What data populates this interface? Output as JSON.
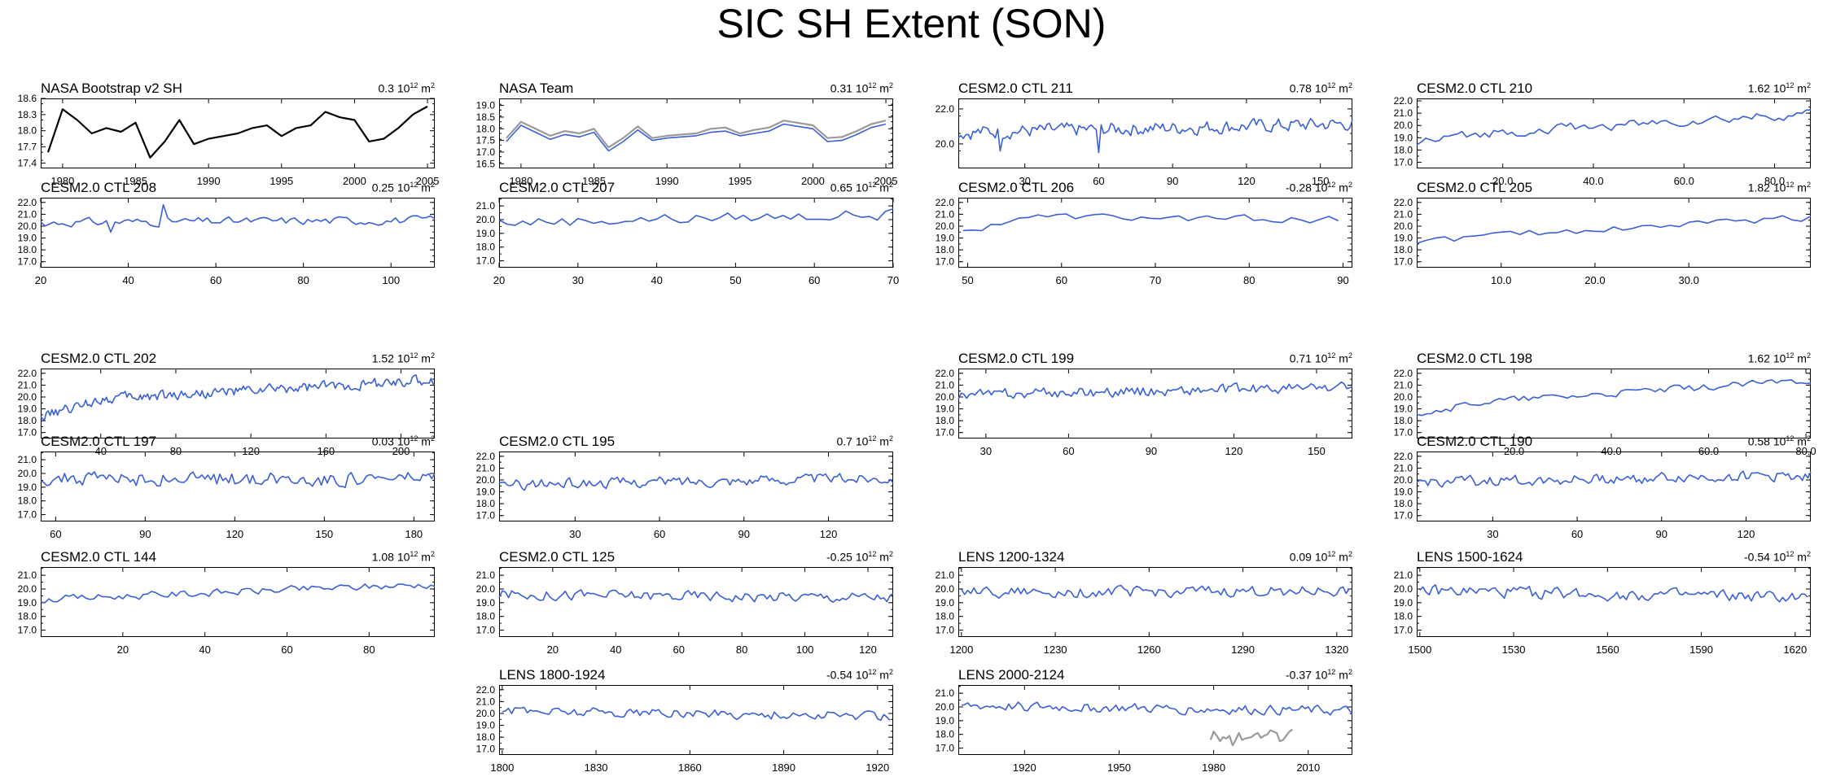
{
  "figure": {
    "title": "SIC SH Extent (SON)"
  },
  "colors": {
    "model": "#3a5fd6",
    "obs": "#000000",
    "obs_alt": "#9a9a9a"
  },
  "trend_unit": {
    "base": "10",
    "exp": "12",
    "unit": "m",
    "unit_exp": "2"
  },
  "chart_data": [
    {
      "id": "nasa-bootstrap",
      "type": "line",
      "name": "NASA Bootstrap v2 SH",
      "trend": "0.3",
      "xlim": [
        1978.5,
        2005.5
      ],
      "ylim": [
        17.3,
        18.6
      ],
      "yticks": [
        17.4,
        17.7,
        18.0,
        18.3,
        18.6
      ],
      "ytick_labels": [
        "17.4",
        "17.7",
        "18.0",
        "18.3",
        "18.6"
      ],
      "xticks": [
        1980,
        1985,
        1990,
        1995,
        2000,
        2005
      ],
      "xtick_labels": [
        "1980",
        "1985",
        "1990",
        "1995",
        "2000",
        "2005"
      ],
      "series": [
        {
          "style": "obs",
          "x0": 1979,
          "dx": 1,
          "values": [
            17.6,
            18.4,
            18.2,
            17.95,
            18.05,
            17.98,
            18.15,
            17.5,
            17.8,
            18.2,
            17.75,
            17.85,
            17.9,
            17.95,
            18.05,
            18.1,
            17.9,
            18.05,
            18.1,
            18.35,
            18.25,
            18.2,
            17.8,
            17.85,
            18.05,
            18.3,
            18.45
          ]
        }
      ]
    },
    {
      "id": "nasa-team",
      "type": "line",
      "name": "NASA Team",
      "trend": "0.31",
      "xlim": [
        1978.5,
        2005.5
      ],
      "ylim": [
        16.3,
        19.3
      ],
      "yticks": [
        16.5,
        17.0,
        17.5,
        18.0,
        18.5,
        19.0
      ],
      "ytick_labels": [
        "16.5",
        "17.0",
        "17.5",
        "18.0",
        "18.5",
        "19.0"
      ],
      "xticks": [
        1980,
        1985,
        1990,
        1995,
        2000,
        2005
      ],
      "xtick_labels": [
        "1980",
        "1985",
        "1990",
        "1995",
        "2000",
        "2005"
      ],
      "series": [
        {
          "style": "obs_alt",
          "x0": 1979,
          "dx": 1,
          "values": [
            17.6,
            18.3,
            18.0,
            17.7,
            17.9,
            17.8,
            18.0,
            17.2,
            17.6,
            18.1,
            17.6,
            17.7,
            17.75,
            17.8,
            18.0,
            18.05,
            17.8,
            17.95,
            18.05,
            18.35,
            18.25,
            18.15,
            17.6,
            17.65,
            17.9,
            18.2,
            18.35
          ]
        },
        {
          "style": "model",
          "x0": 1979,
          "dx": 1,
          "values": [
            17.45,
            18.15,
            17.85,
            17.55,
            17.75,
            17.65,
            17.85,
            17.05,
            17.45,
            17.95,
            17.5,
            17.6,
            17.65,
            17.7,
            17.85,
            17.9,
            17.7,
            17.8,
            17.9,
            18.2,
            18.1,
            18.0,
            17.45,
            17.5,
            17.75,
            18.05,
            18.2
          ]
        }
      ]
    },
    {
      "id": "ctl-211",
      "type": "line",
      "name": "CESM2.0 CTL 211",
      "trend": "0.78",
      "xlim": [
        3,
        163
      ],
      "ylim": [
        18.6,
        22.6
      ],
      "yticks": [
        20.0,
        22.0
      ],
      "ytick_labels": [
        "20.0",
        "22.0"
      ],
      "xticks": [
        30,
        60,
        90,
        120,
        150
      ],
      "xtick_labels": [
        "30",
        "60",
        "90",
        "120",
        "150"
      ],
      "series": [
        {
          "style": "model",
          "x0": 3,
          "dx": 1,
          "n": 161,
          "seed": 211,
          "mean": 20.9,
          "amp": 0.45,
          "trend": 0.5,
          "dip": [
            [
              20,
              19.6
            ],
            [
              60,
              19.5
            ]
          ]
        }
      ]
    },
    {
      "id": "ctl-210",
      "type": "line",
      "name": "CESM2.0 CTL 210",
      "trend": "1.62",
      "xlim": [
        1,
        88
      ],
      "ylim": [
        16.5,
        22.2
      ],
      "yticks": [
        17.0,
        18.0,
        19.0,
        20.0,
        21.0,
        22.0
      ],
      "ytick_labels": [
        "17.0",
        "18.0",
        "19.0",
        "20.0",
        "21.0",
        "22.0"
      ],
      "xticks": [
        20,
        40,
        60,
        80
      ],
      "xtick_labels": [
        "20.0",
        "40.0",
        "60.0",
        "80.0"
      ],
      "series": [
        {
          "style": "model",
          "x0": 1,
          "dx": 1,
          "n": 88,
          "seed": 210,
          "mean": 20.0,
          "amp": 0.45,
          "trend": 1.9,
          "start": 18.6
        }
      ]
    },
    {
      "id": "ctl-208",
      "type": "line",
      "name": "CESM2.0 CTL 208",
      "trend": "0.25",
      "xlim": [
        20,
        110
      ],
      "ylim": [
        16.5,
        22.4
      ],
      "yticks": [
        17.0,
        18.0,
        19.0,
        20.0,
        21.0,
        22.0
      ],
      "ytick_labels": [
        "17.0",
        "18.0",
        "19.0",
        "20.0",
        "21.0",
        "22.0"
      ],
      "xticks": [
        20,
        40,
        60,
        80,
        100
      ],
      "xtick_labels": [
        "20",
        "40",
        "60",
        "80",
        "100"
      ],
      "series": [
        {
          "style": "model",
          "x0": 20,
          "dx": 1,
          "n": 91,
          "seed": 208,
          "mean": 20.4,
          "amp": 0.4,
          "trend": 0.2,
          "dip": [
            [
              36,
              19.5
            ],
            [
              48,
              21.8
            ]
          ]
        }
      ]
    },
    {
      "id": "ctl-207",
      "type": "line",
      "name": "CESM2.0 CTL 207",
      "trend": "0.65",
      "xlim": [
        20,
        70
      ],
      "ylim": [
        16.5,
        21.6
      ],
      "yticks": [
        17.0,
        18.0,
        19.0,
        20.0,
        21.0
      ],
      "ytick_labels": [
        "17.0",
        "18.0",
        "19.0",
        "20.0",
        "21.0"
      ],
      "xticks": [
        20,
        30,
        40,
        50,
        60,
        70
      ],
      "xtick_labels": [
        "20",
        "30",
        "40",
        "50",
        "60",
        "70"
      ],
      "series": [
        {
          "style": "model",
          "x0": 20,
          "dx": 1,
          "n": 51,
          "seed": 207,
          "mean": 20.1,
          "amp": 0.45,
          "trend": 0.6
        }
      ]
    },
    {
      "id": "ctl-206",
      "type": "line",
      "name": "CESM2.0 CTL 206",
      "trend": "-0.28",
      "xlim": [
        49,
        91
      ],
      "ylim": [
        16.5,
        22.4
      ],
      "yticks": [
        17.0,
        18.0,
        19.0,
        20.0,
        21.0,
        22.0
      ],
      "ytick_labels": [
        "17.0",
        "18.0",
        "19.0",
        "20.0",
        "21.0",
        "22.0"
      ],
      "xticks": [
        50,
        60,
        70,
        80,
        90
      ],
      "xtick_labels": [
        "50",
        "60",
        "70",
        "80",
        "90"
      ],
      "series": [
        {
          "style": "model",
          "x0": 49.5,
          "dx": 1,
          "n": 41,
          "seed": 206,
          "mean": 20.7,
          "amp": 0.35,
          "trend": -0.3,
          "start": 19.4
        }
      ]
    },
    {
      "id": "ctl-205",
      "type": "line",
      "name": "CESM2.0 CTL 205",
      "trend": "1.82",
      "xlim": [
        1,
        43
      ],
      "ylim": [
        16.5,
        22.4
      ],
      "yticks": [
        17.0,
        18.0,
        19.0,
        20.0,
        21.0,
        22.0
      ],
      "ytick_labels": [
        "17.0",
        "18.0",
        "19.0",
        "20.0",
        "21.0",
        "22.0"
      ],
      "xticks": [
        10,
        20,
        30
      ],
      "xtick_labels": [
        "10.0",
        "20.0",
        "30.0"
      ],
      "series": [
        {
          "style": "model",
          "x0": 1,
          "dx": 1,
          "n": 43,
          "seed": 205,
          "mean": 19.8,
          "amp": 0.35,
          "trend": 2.0,
          "start": 18.8
        }
      ]
    },
    {
      "id": "ctl-202",
      "type": "line",
      "name": "CESM2.0 CTL 202",
      "trend": "1.52",
      "xlim": [
        8,
        218
      ],
      "ylim": [
        16.5,
        22.4
      ],
      "yticks": [
        17.0,
        18.0,
        19.0,
        20.0,
        21.0,
        22.0
      ],
      "ytick_labels": [
        "17.0",
        "18.0",
        "19.0",
        "20.0",
        "21.0",
        "22.0"
      ],
      "xticks": [
        40,
        80,
        120,
        160,
        200
      ],
      "xtick_labels": [
        "40",
        "80",
        "120",
        "160",
        "200"
      ],
      "series": [
        {
          "style": "model",
          "x0": 8,
          "dx": 1,
          "n": 211,
          "seed": 202,
          "mean": 20.5,
          "amp": 0.5,
          "trend": 1.8,
          "start": 18.3
        }
      ]
    },
    {
      "id": "ctl-199",
      "type": "line",
      "name": "CESM2.0 CTL 199",
      "trend": "0.71",
      "xlim": [
        20,
        163
      ],
      "ylim": [
        16.5,
        22.4
      ],
      "yticks": [
        17.0,
        18.0,
        19.0,
        20.0,
        21.0,
        22.0
      ],
      "ytick_labels": [
        "17.0",
        "18.0",
        "19.0",
        "20.0",
        "21.0",
        "22.0"
      ],
      "xticks": [
        30,
        60,
        90,
        120,
        150
      ],
      "xtick_labels": [
        "30",
        "60",
        "90",
        "120",
        "150"
      ],
      "series": [
        {
          "style": "model",
          "x0": 20,
          "dx": 1,
          "n": 144,
          "seed": 199,
          "mean": 20.5,
          "amp": 0.5,
          "trend": 0.7
        }
      ]
    },
    {
      "id": "ctl-198",
      "type": "line",
      "name": "CESM2.0 CTL 198",
      "trend": "1.62",
      "xlim": [
        0,
        81
      ],
      "ylim": [
        16.5,
        22.4
      ],
      "yticks": [
        17.0,
        18.0,
        19.0,
        20.0,
        21.0,
        22.0
      ],
      "ytick_labels": [
        "17.0",
        "18.0",
        "19.0",
        "20.0",
        "21.0",
        "22.0"
      ],
      "xticks": [
        20,
        40,
        60,
        80
      ],
      "xtick_labels": [
        "20.0",
        "40.0",
        "60.0",
        "80.0"
      ],
      "series": [
        {
          "style": "model",
          "x0": 0,
          "dx": 1,
          "n": 82,
          "seed": 198,
          "mean": 20.3,
          "amp": 0.35,
          "trend": 2.2,
          "start": 18.7
        }
      ]
    },
    {
      "id": "ctl-197",
      "type": "line",
      "name": "CESM2.0 CTL 197",
      "trend": "0.03",
      "xlim": [
        55,
        187
      ],
      "ylim": [
        16.5,
        21.6
      ],
      "yticks": [
        17.0,
        18.0,
        19.0,
        20.0,
        21.0
      ],
      "ytick_labels": [
        "17.0",
        "18.0",
        "19.0",
        "20.0",
        "21.0"
      ],
      "xticks": [
        60,
        90,
        120,
        150,
        180
      ],
      "xtick_labels": [
        "60",
        "90",
        "120",
        "150",
        "180"
      ],
      "series": [
        {
          "style": "model",
          "x0": 55,
          "dx": 1,
          "n": 133,
          "seed": 197,
          "mean": 19.6,
          "amp": 0.6,
          "trend": 0.0
        }
      ]
    },
    {
      "id": "ctl-195",
      "type": "line",
      "name": "CESM2.0 CTL 195",
      "trend": "0.7",
      "xlim": [
        3,
        143
      ],
      "ylim": [
        16.5,
        22.4
      ],
      "yticks": [
        17.0,
        18.0,
        19.0,
        20.0,
        21.0,
        22.0
      ],
      "ytick_labels": [
        "17.0",
        "18.0",
        "19.0",
        "20.0",
        "21.0",
        "22.0"
      ],
      "xticks": [
        30,
        60,
        90,
        120
      ],
      "xtick_labels": [
        "30",
        "60",
        "90",
        "120"
      ],
      "series": [
        {
          "style": "model",
          "x0": 3,
          "dx": 1,
          "n": 141,
          "seed": 195,
          "mean": 19.9,
          "amp": 0.5,
          "trend": 0.6
        }
      ]
    },
    {
      "id": "ctl-190",
      "type": "line",
      "name": "CESM2.0 CTL 190",
      "trend": "0.58",
      "xlim": [
        3,
        143
      ],
      "ylim": [
        16.5,
        22.4
      ],
      "yticks": [
        17.0,
        18.0,
        19.0,
        20.0,
        21.0,
        22.0
      ],
      "ytick_labels": [
        "17.0",
        "18.0",
        "19.0",
        "20.0",
        "21.0",
        "22.0"
      ],
      "xticks": [
        30,
        60,
        90,
        120
      ],
      "xtick_labels": [
        "30",
        "60",
        "90",
        "120"
      ],
      "series": [
        {
          "style": "model",
          "x0": 3,
          "dx": 1,
          "n": 141,
          "seed": 190,
          "mean": 20.1,
          "amp": 0.5,
          "trend": 0.6
        }
      ]
    },
    {
      "id": "ctl-144",
      "type": "line",
      "name": "CESM2.0 CTL 144",
      "trend": "1.08",
      "xlim": [
        0,
        96
      ],
      "ylim": [
        16.5,
        21.6
      ],
      "yticks": [
        17.0,
        18.0,
        19.0,
        20.0,
        21.0
      ],
      "ytick_labels": [
        "17.0",
        "18.0",
        "19.0",
        "20.0",
        "21.0"
      ],
      "xticks": [
        20,
        40,
        60,
        80
      ],
      "xtick_labels": [
        "20",
        "40",
        "60",
        "80"
      ],
      "series": [
        {
          "style": "model",
          "x0": 0,
          "dx": 1,
          "n": 97,
          "seed": 144,
          "mean": 19.8,
          "amp": 0.3,
          "trend": 1.1
        }
      ]
    },
    {
      "id": "ctl-125",
      "type": "line",
      "name": "CESM2.0 CTL 125",
      "trend": "-0.25",
      "xlim": [
        3,
        128
      ],
      "ylim": [
        16.5,
        21.6
      ],
      "yticks": [
        17.0,
        18.0,
        19.0,
        20.0,
        21.0
      ],
      "ytick_labels": [
        "17.0",
        "18.0",
        "19.0",
        "20.0",
        "21.0"
      ],
      "xticks": [
        20,
        40,
        60,
        80,
        100,
        120
      ],
      "xtick_labels": [
        "20",
        "40",
        "60",
        "80",
        "100",
        "120"
      ],
      "series": [
        {
          "style": "model",
          "x0": 3,
          "dx": 1,
          "n": 126,
          "seed": 125,
          "mean": 19.5,
          "amp": 0.45,
          "trend": -0.2
        }
      ]
    },
    {
      "id": "lens-1200",
      "type": "line",
      "name": "LENS 1200-1324",
      "trend": "0.09",
      "xlim": [
        1199,
        1325
      ],
      "ylim": [
        16.5,
        21.6
      ],
      "yticks": [
        17.0,
        18.0,
        19.0,
        20.0,
        21.0
      ],
      "ytick_labels": [
        "17.0",
        "18.0",
        "19.0",
        "20.0",
        "21.0"
      ],
      "xticks": [
        1200,
        1230,
        1260,
        1290,
        1320
      ],
      "xtick_labels": [
        "1200",
        "1230",
        "1260",
        "1290",
        "1320"
      ],
      "series": [
        {
          "style": "model",
          "x0": 1200,
          "dx": 1,
          "n": 125,
          "seed": 1200,
          "mean": 19.8,
          "amp": 0.45,
          "trend": 0.1
        }
      ]
    },
    {
      "id": "lens-1500",
      "type": "line",
      "name": "LENS 1500-1624",
      "trend": "-0.54",
      "xlim": [
        1499,
        1625
      ],
      "ylim": [
        16.5,
        21.6
      ],
      "yticks": [
        17.0,
        18.0,
        19.0,
        20.0,
        21.0
      ],
      "ytick_labels": [
        "17.0",
        "18.0",
        "19.0",
        "20.0",
        "21.0"
      ],
      "xticks": [
        1500,
        1530,
        1560,
        1590,
        1620
      ],
      "xtick_labels": [
        "1500",
        "1530",
        "1560",
        "1590",
        "1620"
      ],
      "series": [
        {
          "style": "model",
          "x0": 1500,
          "dx": 1,
          "n": 125,
          "seed": 1500,
          "mean": 19.6,
          "amp": 0.5,
          "trend": -0.5
        }
      ]
    },
    {
      "id": "lens-1800",
      "type": "line",
      "name": "LENS 1800-1924",
      "trend": "-0.54",
      "xlim": [
        1799,
        1925
      ],
      "ylim": [
        16.5,
        22.4
      ],
      "yticks": [
        17.0,
        18.0,
        19.0,
        20.0,
        21.0,
        22.0
      ],
      "ytick_labels": [
        "17.0",
        "18.0",
        "19.0",
        "20.0",
        "21.0",
        "22.0"
      ],
      "xticks": [
        1800,
        1830,
        1860,
        1890,
        1920
      ],
      "xtick_labels": [
        "1800",
        "1830",
        "1860",
        "1890",
        "1920"
      ],
      "series": [
        {
          "style": "model",
          "x0": 1800,
          "dx": 1,
          "n": 125,
          "seed": 1800,
          "mean": 20.0,
          "amp": 0.45,
          "trend": -0.5
        }
      ]
    },
    {
      "id": "lens-2000",
      "type": "line",
      "name": "LENS 2000-2124",
      "trend": "-0.37",
      "xlim": [
        1899,
        2024
      ],
      "ylim": [
        16.5,
        21.6
      ],
      "yticks": [
        17.0,
        18.0,
        19.0,
        20.0,
        21.0
      ],
      "ytick_labels": [
        "17.0",
        "18.0",
        "19.0",
        "20.0",
        "21.0"
      ],
      "xticks": [
        1920,
        1950,
        1980,
        2010
      ],
      "xtick_labels": [
        "1920",
        "1950",
        "1980",
        "2010"
      ],
      "series": [
        {
          "style": "model",
          "x0": 1900,
          "dx": 1,
          "n": 125,
          "seed": 2000,
          "mean": 19.9,
          "amp": 0.4,
          "trend": -0.4
        },
        {
          "style": "obs_alt",
          "x0": 1979,
          "dx": 1,
          "values": [
            17.6,
            18.2,
            17.9,
            17.5,
            17.8,
            17.7,
            17.9,
            17.2,
            17.6,
            18.1,
            17.6,
            17.7,
            17.75,
            17.8,
            18.0,
            18.1,
            17.75,
            17.9,
            18.0,
            18.3,
            18.2,
            18.1,
            17.5,
            17.6,
            17.9,
            18.2,
            18.35
          ]
        }
      ]
    }
  ]
}
